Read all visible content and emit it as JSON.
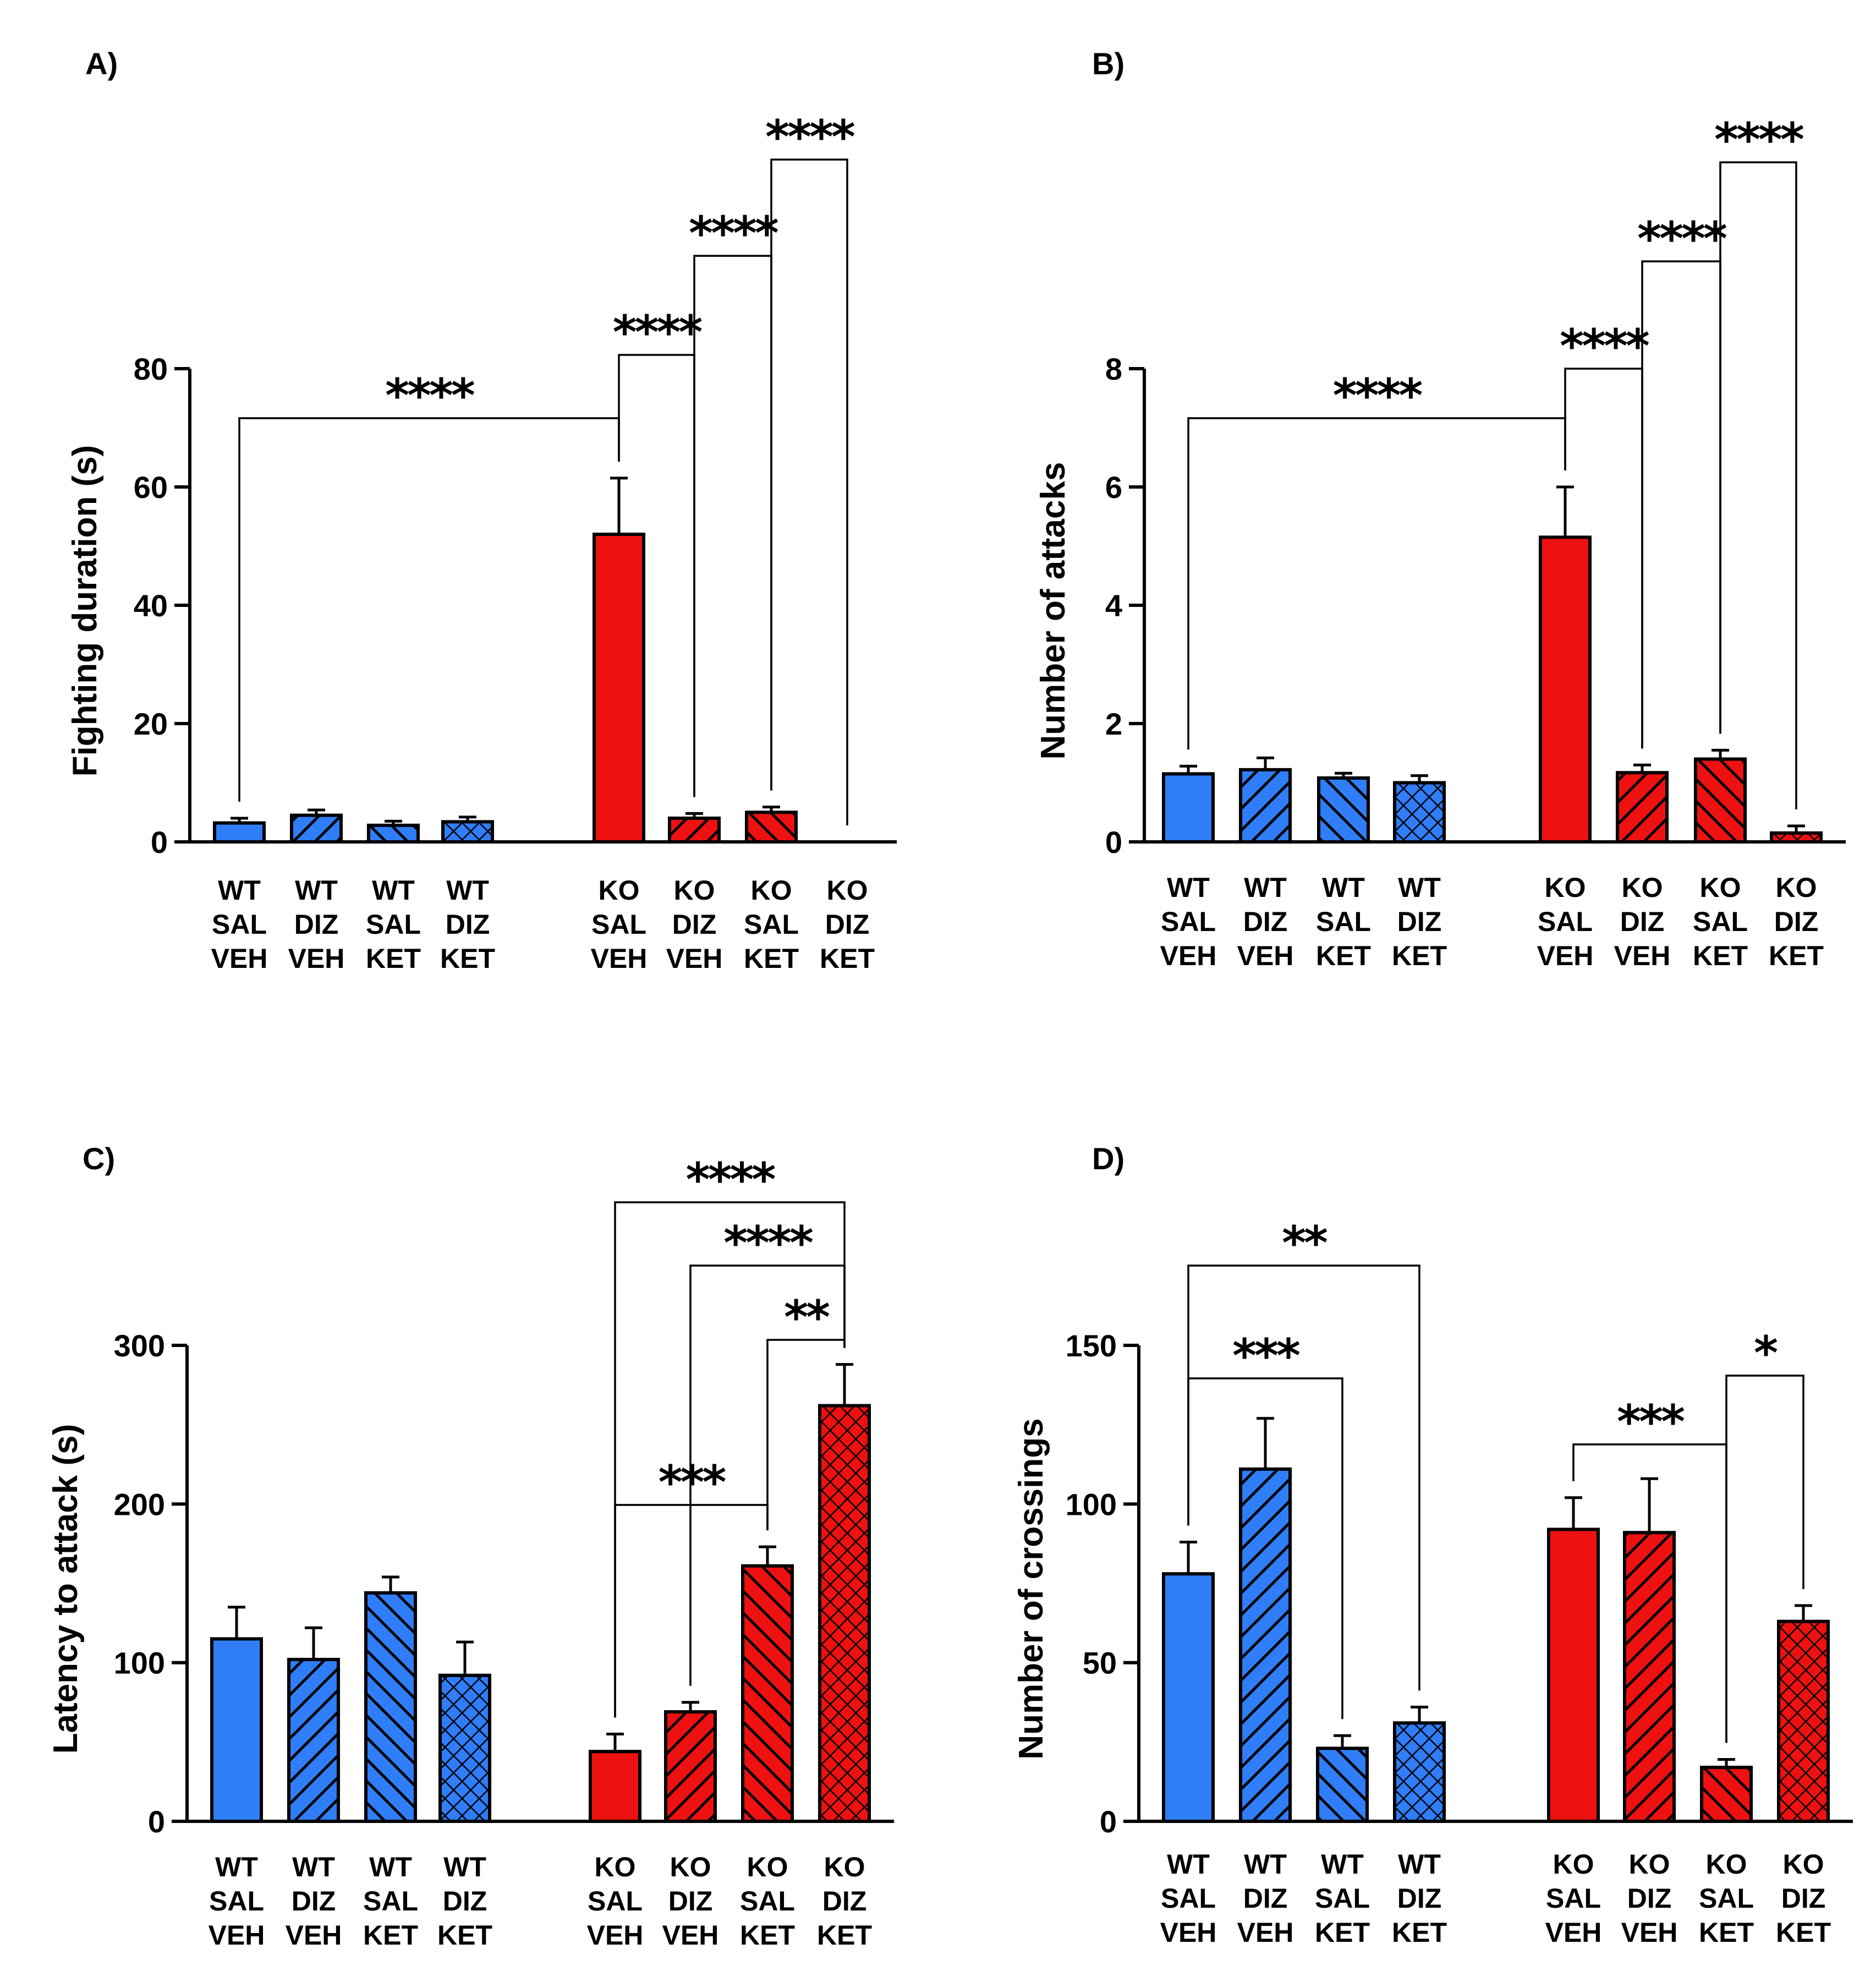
{
  "colors": {
    "wt": "#2f7df7",
    "ko": "#ee1111",
    "axis": "#000000"
  },
  "chart_data": [
    {
      "panel": "A)",
      "type": "bar",
      "ylabel": "Fighting duration (s)",
      "ylim": [
        0,
        80
      ],
      "yticks": [
        0,
        20,
        40,
        60,
        80
      ],
      "categories": [
        [
          "WT",
          "SAL",
          "VEH"
        ],
        [
          "WT",
          "DIZ",
          "VEH"
        ],
        [
          "WT",
          "SAL",
          "KET"
        ],
        [
          "WT",
          "DIZ",
          "KET"
        ],
        [
          "KO",
          "SAL",
          "VEH"
        ],
        [
          "KO",
          "DIZ",
          "VEH"
        ],
        [
          "KO",
          "SAL",
          "KET"
        ],
        [
          "KO",
          "DIZ",
          "KET"
        ]
      ],
      "values": [
        3.2,
        4.5,
        2.8,
        3.4,
        52,
        4.0,
        5.0,
        0
      ],
      "errors": [
        0.8,
        0.9,
        0.7,
        0.8,
        9.5,
        0.8,
        0.9,
        0
      ],
      "significance": [
        {
          "from": 0,
          "to": 4,
          "label": "****"
        },
        {
          "from": 4,
          "to": 5,
          "label": "****"
        },
        {
          "from": 5,
          "to": 6,
          "label": "****"
        },
        {
          "from": 6,
          "to": 7,
          "label": "****"
        }
      ]
    },
    {
      "panel": "B)",
      "type": "bar",
      "ylabel": "Number of attacks",
      "ylim": [
        0,
        8
      ],
      "yticks": [
        0,
        2,
        4,
        6,
        8
      ],
      "categories": [
        [
          "WT",
          "SAL",
          "VEH"
        ],
        [
          "WT",
          "DIZ",
          "VEH"
        ],
        [
          "WT",
          "SAL",
          "KET"
        ],
        [
          "WT",
          "DIZ",
          "KET"
        ],
        [
          "KO",
          "SAL",
          "VEH"
        ],
        [
          "KO",
          "DIZ",
          "VEH"
        ],
        [
          "KO",
          "SAL",
          "KET"
        ],
        [
          "KO",
          "DIZ",
          "KET"
        ]
      ],
      "values": [
        1.15,
        1.22,
        1.08,
        1.0,
        5.15,
        1.17,
        1.4,
        0.15
      ],
      "errors": [
        0.13,
        0.2,
        0.08,
        0.12,
        0.85,
        0.13,
        0.15,
        0.12
      ],
      "significance": [
        {
          "from": 0,
          "to": 4,
          "label": "****"
        },
        {
          "from": 4,
          "to": 5,
          "label": "****"
        },
        {
          "from": 5,
          "to": 6,
          "label": "****"
        },
        {
          "from": 6,
          "to": 7,
          "label": "****"
        }
      ]
    },
    {
      "panel": "C)",
      "type": "bar",
      "ylabel": "Latency to attack (s)",
      "ylim": [
        0,
        300
      ],
      "yticks": [
        0,
        100,
        200,
        300
      ],
      "categories": [
        [
          "WT",
          "SAL",
          "VEH"
        ],
        [
          "WT",
          "DIZ",
          "VEH"
        ],
        [
          "WT",
          "SAL",
          "KET"
        ],
        [
          "WT",
          "DIZ",
          "KET"
        ],
        [
          "KO",
          "SAL",
          "VEH"
        ],
        [
          "KO",
          "DIZ",
          "VEH"
        ],
        [
          "KO",
          "SAL",
          "KET"
        ],
        [
          "KO",
          "DIZ",
          "KET"
        ]
      ],
      "values": [
        115,
        102,
        144,
        92,
        44,
        69,
        161,
        262
      ],
      "errors": [
        20,
        20,
        10,
        21,
        11,
        6,
        12,
        26
      ],
      "significance": [
        {
          "from": 4,
          "to": 6,
          "label": "***"
        },
        {
          "from": 6,
          "to": 7,
          "label": "**"
        },
        {
          "from": 5,
          "to": 7,
          "label": "****"
        },
        {
          "from": 4,
          "to": 7,
          "label": "****"
        }
      ]
    },
    {
      "panel": "D)",
      "type": "bar",
      "ylabel": "Number of crossings",
      "ylim": [
        0,
        150
      ],
      "yticks": [
        0,
        50,
        100,
        150
      ],
      "categories": [
        [
          "WT",
          "SAL",
          "VEH"
        ],
        [
          "WT",
          "DIZ",
          "VEH"
        ],
        [
          "WT",
          "SAL",
          "KET"
        ],
        [
          "WT",
          "DIZ",
          "KET"
        ],
        [
          "KO",
          "SAL",
          "VEH"
        ],
        [
          "KO",
          "DIZ",
          "VEH"
        ],
        [
          "KO",
          "SAL",
          "KET"
        ],
        [
          "KO",
          "DIZ",
          "KET"
        ]
      ],
      "values": [
        78,
        111,
        23,
        31,
        92,
        91,
        17,
        63
      ],
      "errors": [
        10,
        16,
        4,
        5,
        10,
        17,
        2.5,
        5
      ],
      "significance": [
        {
          "from": 0,
          "to": 2,
          "label": "***"
        },
        {
          "from": 0,
          "to": 3,
          "label": "**"
        },
        {
          "from": 4,
          "to": 6,
          "label": "***"
        },
        {
          "from": 6,
          "to": 7,
          "label": "*"
        }
      ]
    }
  ]
}
